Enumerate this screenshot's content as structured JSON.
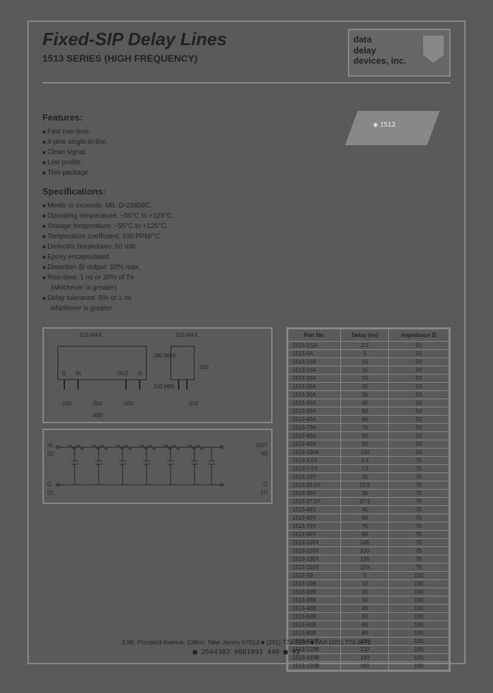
{
  "header": {
    "title": "Fixed-SIP Delay Lines",
    "subtitle": "1513 SERIES (HIGH FREQUENCY)",
    "logo": {
      "line1": "data",
      "line2": "delay",
      "line3": "devices, inc."
    }
  },
  "chip_label": "◈ 1513",
  "features": {
    "heading": "Features:",
    "items": [
      "Fast rise-time.",
      "4-pins single-in-line.",
      "Clean signal.",
      "Low profile.",
      "Thin package."
    ]
  },
  "specs": {
    "heading": "Specifications:",
    "items": [
      "Meets or exceeds: MIL-D-23859C.",
      "Operating temperature: −55°C to +125°C.",
      "Storage temperature: −55°C to +125°C.",
      "Temperature coefficient: 100 PPM/°C.",
      "Dielectric breakdown: 50 Vdc.",
      "Epoxy encapsulated.",
      "Distortion @ output: 10% max.",
      "Rise-time: 1 ns or 20% of Tᴅ",
      "(whichever is greater)",
      "Delay tolerance: 5% or 1 ns",
      "whichever is greater"
    ],
    "indent_indices": [
      8,
      10
    ]
  },
  "diagram": {
    "dims": {
      "width": ".610 MAX.",
      "side_w": ".210 MAX.",
      "height": ".280 MAX.",
      "lead_sp": ".100",
      "lead_min": ".100 MIN.",
      "pin_w": ".020",
      "pin_t": ".010",
      "offset": ".030",
      "span": ".600"
    },
    "pins": {
      "g": "G",
      "in": "IN",
      "out": "OUT"
    },
    "circuit": {
      "in": "IN",
      "out": "OUT",
      "g": "G",
      "p2": "(2)",
      "p6": "(6)",
      "p1": "(1)",
      "p7": "(7)"
    }
  },
  "table": {
    "columns": [
      "Part No.",
      "Delay (ns)",
      "Impedance Ω"
    ],
    "rows": [
      [
        "1513-2.5A",
        "2.5",
        "50"
      ],
      [
        "1513-5A",
        "5",
        "50"
      ],
      [
        "1513-10A",
        "10",
        "50"
      ],
      [
        "1513-15A",
        "15",
        "50"
      ],
      [
        "1513-20A",
        "20",
        "50"
      ],
      [
        "1513-25A",
        "25",
        "50"
      ],
      [
        "1513-30A",
        "30",
        "50"
      ],
      [
        "1513-40A",
        "40",
        "50"
      ],
      [
        "1513-50A",
        "50",
        "50"
      ],
      [
        "1513-60A",
        "60",
        "50"
      ],
      [
        "1513-70A",
        "70",
        "50"
      ],
      [
        "1513-80A",
        "80",
        "50"
      ],
      [
        "1513-90A",
        "90",
        "50"
      ],
      [
        "1513-100A",
        "100",
        "50"
      ],
      [
        "1513-3.5Y",
        "3.5",
        "75"
      ],
      [
        "1513-7.5Y",
        "7.5",
        "75"
      ],
      [
        "1513-15Y",
        "15",
        "75"
      ],
      [
        "1513-22.5Y",
        "22.5",
        "75"
      ],
      [
        "1513-30Y",
        "30",
        "75"
      ],
      [
        "1513-37.5Y",
        "37.5",
        "75"
      ],
      [
        "1513-45Y",
        "45",
        "75"
      ],
      [
        "1513-60Y",
        "60",
        "75"
      ],
      [
        "1513-75Y",
        "75",
        "75"
      ],
      [
        "1513-90Y",
        "90",
        "75"
      ],
      [
        "1513-105Y",
        "105",
        "75"
      ],
      [
        "1513-120Y",
        "120",
        "75"
      ],
      [
        "1513-135Y",
        "135",
        "75"
      ],
      [
        "1513-150Y",
        "150",
        "75"
      ],
      [
        "1513-5B",
        "5",
        "100"
      ],
      [
        "1513-10B",
        "10",
        "100"
      ],
      [
        "1513-20B",
        "20",
        "100"
      ],
      [
        "1513-30B",
        "30",
        "100"
      ],
      [
        "1513-40B",
        "40",
        "100"
      ],
      [
        "1513-50B",
        "50",
        "100"
      ],
      [
        "1513-60B",
        "60",
        "100"
      ],
      [
        "1513-80B",
        "80",
        "100"
      ],
      [
        "1513-100B",
        "100",
        "100"
      ],
      [
        "1513-120B",
        "120",
        "100"
      ],
      [
        "1513-140B",
        "140",
        "100"
      ],
      [
        "1513-150B",
        "150",
        "100"
      ]
    ]
  },
  "footer": {
    "address": "3 Mt. Prospect Avenue, Clifton, New Jersey 07013 ■ (201) 773-2299 ■ FAX (201) 773-9672",
    "code": "■  2644382 0001091 440  ■    92"
  }
}
